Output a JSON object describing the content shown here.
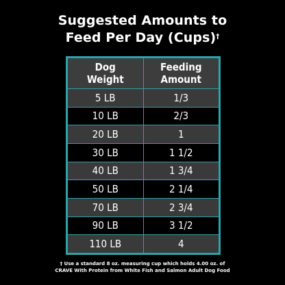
{
  "title": {
    "line1": "Suggested Amounts to",
    "line2": "Feed Per Day (Cups)",
    "dagger": "†"
  },
  "table": {
    "headers": [
      {
        "line1": "Dog",
        "line2": "Weight"
      },
      {
        "line1": "Feeding",
        "line2": "Amount"
      }
    ],
    "rows": [
      {
        "weight": "5 LB",
        "amount": "1/3"
      },
      {
        "weight": "10 LB",
        "amount": "2/3"
      },
      {
        "weight": "20 LB",
        "amount": "1"
      },
      {
        "weight": "30 LB",
        "amount": "1 1/2"
      },
      {
        "weight": "40 LB",
        "amount": "1 3/4"
      },
      {
        "weight": "50 LB",
        "amount": "2 1/4"
      },
      {
        "weight": "70 LB",
        "amount": "2 3/4"
      },
      {
        "weight": "90 LB",
        "amount": "3 1/2"
      },
      {
        "weight": "110 LB",
        "amount": "4"
      }
    ]
  },
  "footnote": {
    "line1": "† Use a standard 8 oz. measuring cup which holds 4.00 oz. of",
    "line2": "CRAVE With Protein from White Fish and Salmon Adult Dog Food"
  },
  "colors": {
    "background": "#000000",
    "border": "#2fa3a8",
    "header_fill": "#3d3d3d",
    "light_row": "#3a3a3a",
    "dark_row": "#000000"
  }
}
